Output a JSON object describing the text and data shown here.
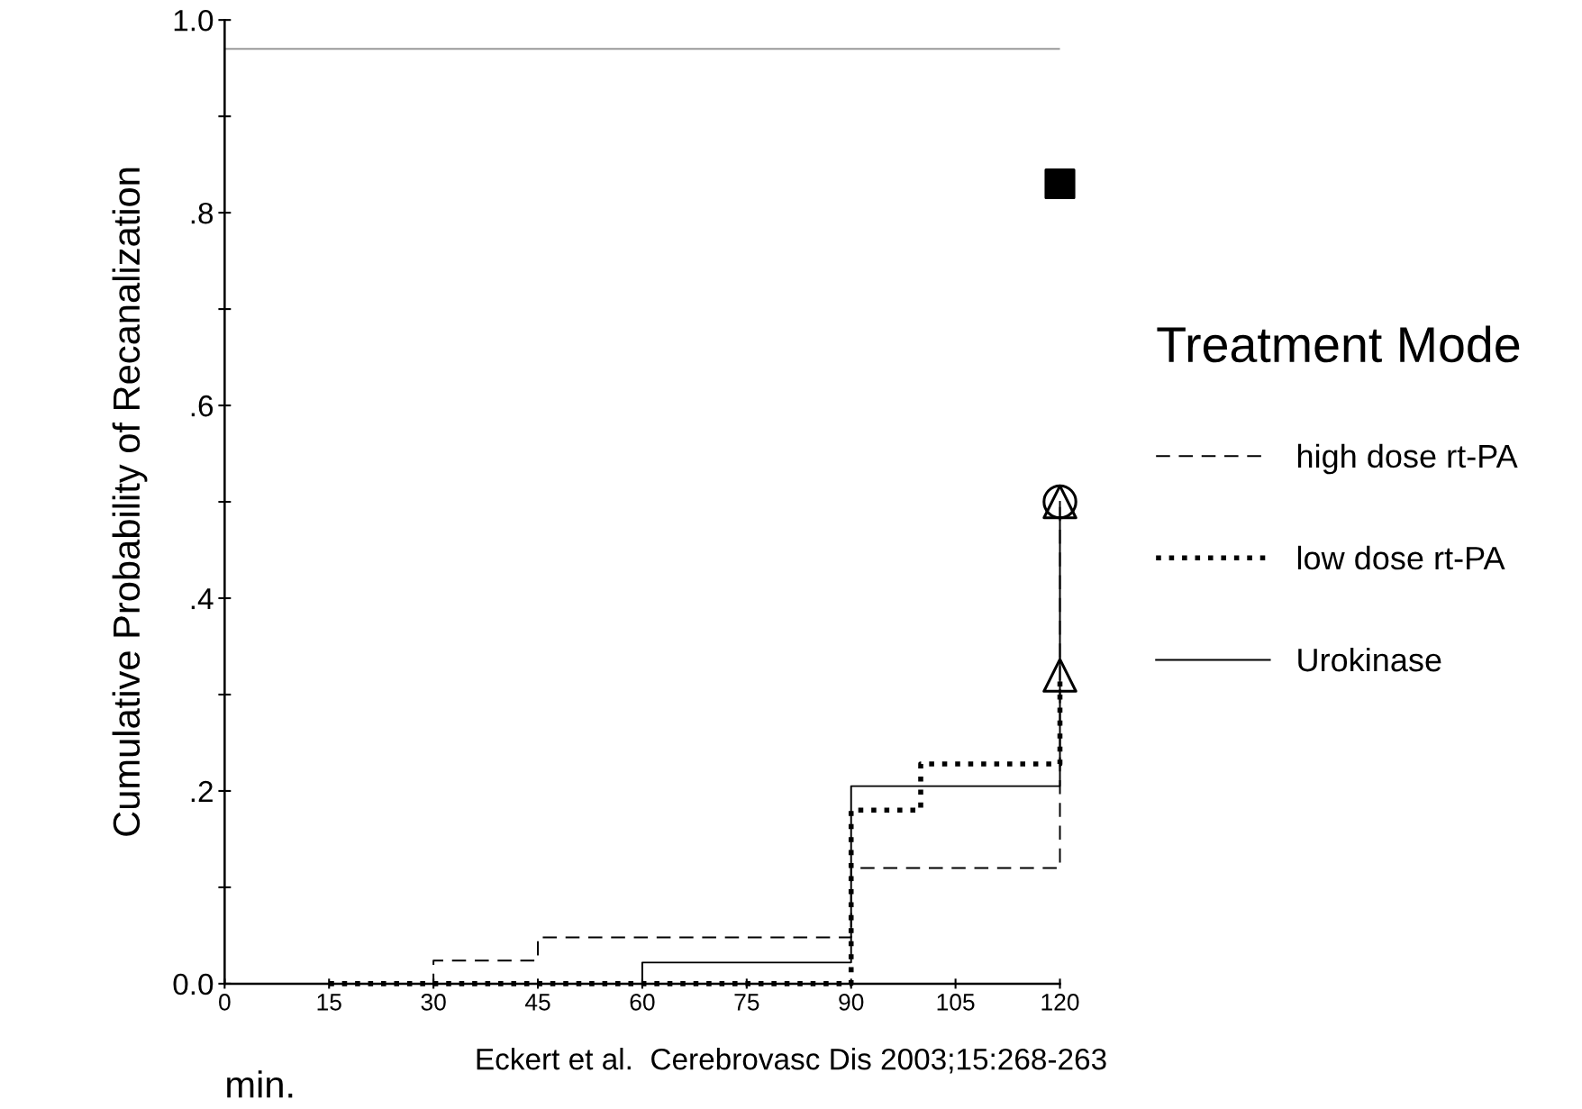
{
  "chart_data": {
    "type": "step",
    "ylabel": "Cumulative Probability of Recanalization",
    "xlabel": "min.",
    "legend_title": "Treatment Mode",
    "series": [
      {
        "name": "high dose rt-PA",
        "color": "#000000",
        "line_style": "dashed",
        "marker": "none",
        "x": [
          0,
          30,
          45,
          90,
          120
        ],
        "values": [
          0,
          0.024,
          0.048,
          0.12,
          0.5
        ]
      },
      {
        "name": "low dose rt-PA",
        "color": "#000000",
        "line_style": "dotted",
        "marker": "none",
        "x": [
          15,
          90,
          100,
          120
        ],
        "values": [
          0,
          0.18,
          0.228,
          0.32
        ]
      },
      {
        "name": "Urokinase",
        "color": "#000000",
        "line_style": "solid",
        "marker": "none",
        "x": [
          0,
          60,
          90,
          120
        ],
        "values": [
          0,
          0.022,
          0.205,
          0.5
        ]
      },
      {
        "type": "scatter",
        "color": "#000000",
        "marker": "circle",
        "x": [
          120
        ],
        "values": [
          0.5
        ]
      },
      {
        "type": "scatter",
        "color": "#000000",
        "marker": "triangle",
        "x": [
          120
        ],
        "values": [
          0.32
        ]
      },
      {
        "type": "scatter",
        "color": "#000000",
        "marker": "triangle",
        "x": [
          120
        ],
        "values": [
          0.5
        ]
      },
      {
        "type": "scatter",
        "color": "#000000",
        "marker": "square",
        "x": [
          120
        ],
        "values": [
          0.83
        ]
      }
    ],
    "xlim": [
      0,
      120
    ],
    "xticks": [
      0,
      15,
      30,
      45,
      60,
      75,
      90,
      105,
      120
    ],
    "ylim": [
      0,
      1.0
    ],
    "yticks": [
      {
        "value": 0,
        "label": "0.0"
      },
      {
        "value": 0.1,
        "label": null
      },
      {
        "value": 0.2,
        "label": ".2"
      },
      {
        "value": 0.3,
        "label": null
      },
      {
        "value": 0.4,
        "label": ".4"
      },
      {
        "value": 0.5,
        "label": null
      },
      {
        "value": 0.6,
        "label": ".6"
      },
      {
        "value": 0.7,
        "label": null
      },
      {
        "value": 0.8,
        "label": ".8"
      },
      {
        "value": 0.9,
        "label": null
      },
      {
        "value": 1.0,
        "label": "1.0"
      }
    ],
    "ref_lines": [
      {
        "axis": "y",
        "value": 0.97,
        "color": "#999999"
      }
    ],
    "annotations": [
      "Eckert et al.  Cerebrovasc Dis 2003;15:268-263"
    ],
    "legend": "right",
    "grid": false
  }
}
